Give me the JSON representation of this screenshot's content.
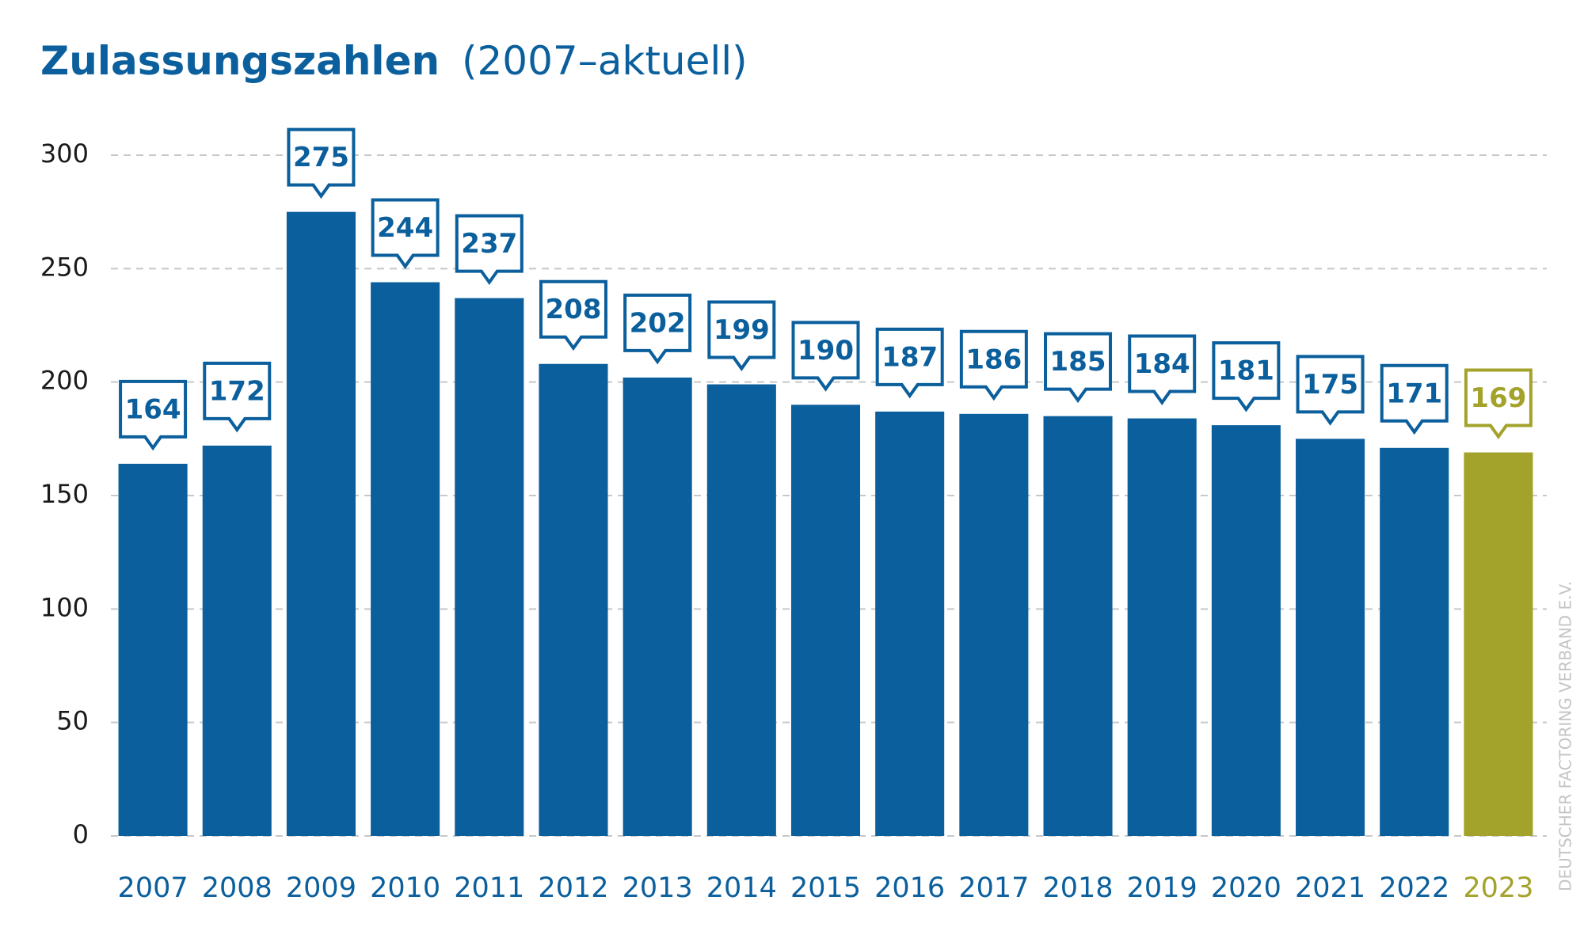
{
  "chart_data": {
    "type": "bar",
    "title": "Zulassungszahlen",
    "subtitle": "(2007–aktuell)",
    "source": "DEUTSCHER FACTORING VERBAND E.V.",
    "categories": [
      "2007",
      "2008",
      "2009",
      "2010",
      "2011",
      "2012",
      "2013",
      "2014",
      "2015",
      "2016",
      "2017",
      "2018",
      "2019",
      "2020",
      "2021",
      "2022",
      "2023"
    ],
    "values": [
      164,
      172,
      275,
      244,
      237,
      208,
      202,
      199,
      190,
      187,
      186,
      185,
      184,
      181,
      175,
      171,
      169
    ],
    "colors": [
      "#0a5f9c",
      "#0a5f9c",
      "#0a5f9c",
      "#0a5f9c",
      "#0a5f9c",
      "#0a5f9c",
      "#0a5f9c",
      "#0a5f9c",
      "#0a5f9c",
      "#0a5f9c",
      "#0a5f9c",
      "#0a5f9c",
      "#0a5f9c",
      "#0a5f9c",
      "#0a5f9c",
      "#0a5f9c",
      "#a3a32c"
    ],
    "ylim": [
      0,
      300
    ],
    "yticks": [
      0,
      50,
      100,
      150,
      200,
      250,
      300
    ],
    "grid": true
  }
}
